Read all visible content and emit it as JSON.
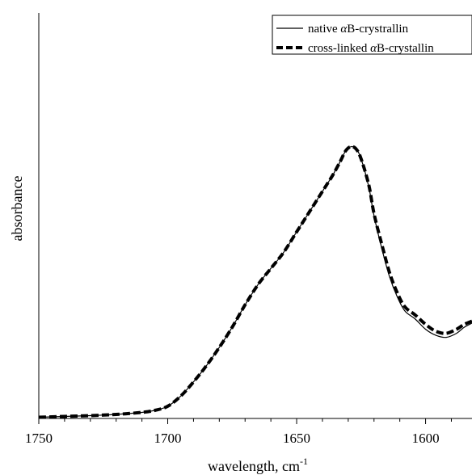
{
  "chart_data": {
    "type": "line",
    "xlabel_main": "wavelength, cm",
    "xlabel_sup": "-1",
    "ylabel": "absorbance",
    "x_reversed": true,
    "xlim": [
      1750,
      1582
    ],
    "ylim": [
      0,
      1
    ],
    "x_ticks": [
      1750,
      1700,
      1650,
      1600
    ],
    "x_tick_labels": [
      "1750",
      "1700",
      "1650",
      "1600"
    ],
    "y_ticks_visible": false,
    "grid": false,
    "legend_position": "top-right",
    "series": [
      {
        "name_prefix": "native ",
        "name_alpha": "α",
        "name_suffix": "B-crystrallin",
        "line_style": "solid",
        "color": "#000000",
        "x": [
          1750,
          1740,
          1730,
          1720,
          1710,
          1705,
          1700,
          1695,
          1690,
          1685,
          1680,
          1675,
          1670,
          1665,
          1660,
          1655,
          1650,
          1645,
          1640,
          1636,
          1633,
          1631,
          1629,
          1627,
          1625,
          1622,
          1620,
          1617,
          1614,
          1611,
          1608,
          1604,
          1600,
          1596,
          1592,
          1588,
          1585,
          1582
        ],
        "y": [
          0.003,
          0.005,
          0.007,
          0.01,
          0.015,
          0.02,
          0.03,
          0.055,
          0.09,
          0.13,
          0.175,
          0.225,
          0.28,
          0.33,
          0.37,
          0.41,
          0.46,
          0.51,
          0.56,
          0.6,
          0.635,
          0.66,
          0.67,
          0.665,
          0.64,
          0.57,
          0.5,
          0.42,
          0.35,
          0.3,
          0.265,
          0.245,
          0.22,
          0.205,
          0.2,
          0.21,
          0.225,
          0.235
        ]
      },
      {
        "name_prefix": "cross-linked ",
        "name_alpha": "α",
        "name_suffix": "B-crystallin",
        "line_style": "dashed",
        "color": "#000000",
        "x": [
          1750,
          1740,
          1730,
          1720,
          1710,
          1705,
          1700,
          1695,
          1690,
          1685,
          1680,
          1675,
          1670,
          1665,
          1660,
          1655,
          1650,
          1645,
          1640,
          1636,
          1633,
          1631,
          1629,
          1627,
          1625,
          1622,
          1620,
          1617,
          1614,
          1611,
          1608,
          1604,
          1600,
          1596,
          1592,
          1588,
          1585,
          1582
        ],
        "y": [
          0.003,
          0.005,
          0.007,
          0.01,
          0.015,
          0.02,
          0.03,
          0.055,
          0.09,
          0.13,
          0.175,
          0.225,
          0.28,
          0.33,
          0.37,
          0.41,
          0.46,
          0.51,
          0.56,
          0.6,
          0.635,
          0.66,
          0.67,
          0.665,
          0.64,
          0.575,
          0.505,
          0.43,
          0.36,
          0.31,
          0.275,
          0.255,
          0.232,
          0.215,
          0.21,
          0.22,
          0.232,
          0.24
        ]
      }
    ]
  }
}
